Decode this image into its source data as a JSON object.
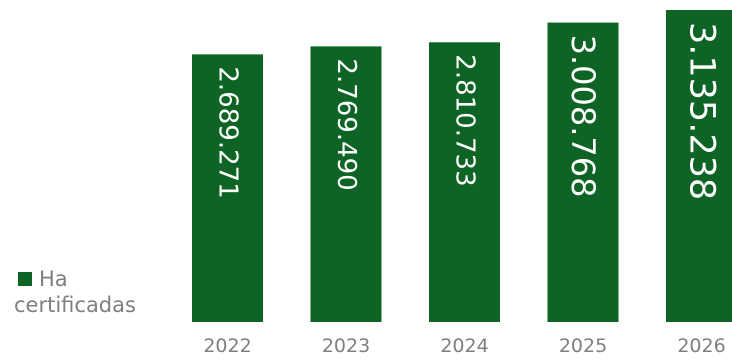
{
  "chart_data": {
    "type": "bar",
    "categories": [
      "2022",
      "2023",
      "2024",
      "2025",
      "2026"
    ],
    "series": [
      {
        "name": "Ha certificadas",
        "values": [
          2689271,
          2769490,
          2810733,
          3008768,
          3135238
        ]
      }
    ],
    "data_labels": [
      "2.689.271",
      "2.769.490",
      "2.810.733",
      "3.008.768",
      "3.135.238"
    ],
    "ylim": [
      0,
      3135238
    ],
    "grid": false,
    "legend": "left",
    "colors": {
      "bar": "#0d6424",
      "label": "#ffffff",
      "tick": "#7f7f7f"
    }
  },
  "legend": {
    "line1": "Ha",
    "line2": "certificadas"
  }
}
